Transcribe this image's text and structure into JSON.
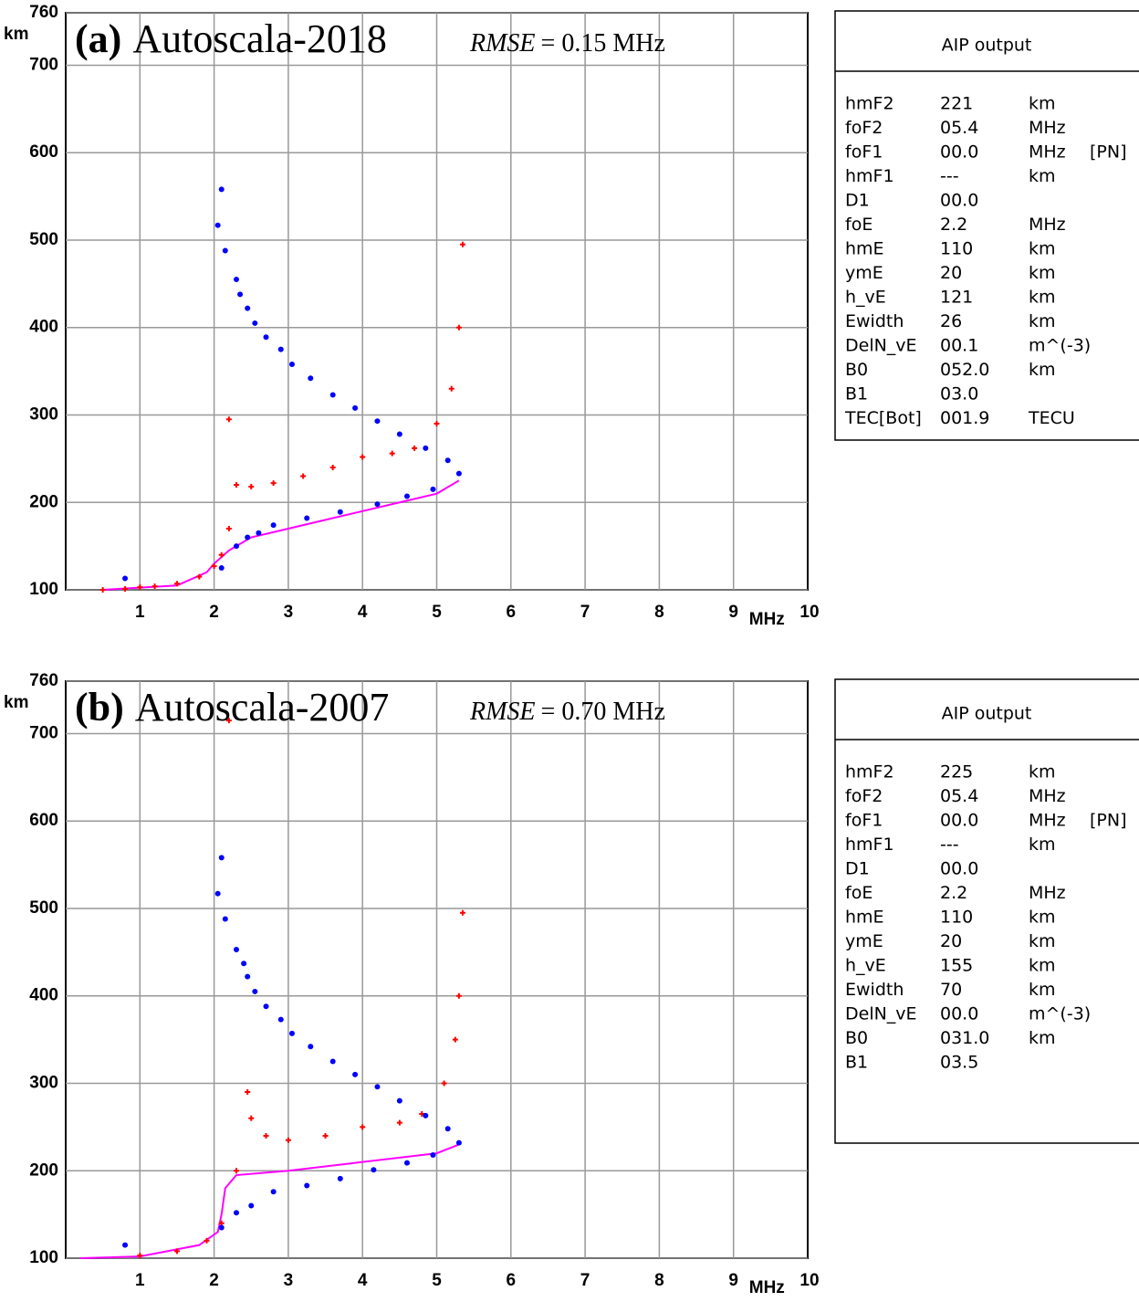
{
  "chart_data": [
    {
      "type": "scatter",
      "label": "(a)",
      "title": "Autoscala-2018",
      "annotation_symbol": "RMSE",
      "annotation_value": "= 0.15 MHz",
      "xlabel": "MHz",
      "ylabel": "km",
      "xlim": [
        0,
        10
      ],
      "ylim": [
        100,
        760
      ],
      "xticks": [
        1,
        2,
        3,
        4,
        5,
        6,
        7,
        8,
        9,
        10
      ],
      "yticks": [
        100,
        200,
        300,
        400,
        500,
        600,
        700,
        760
      ],
      "grid": true,
      "series": [
        {
          "style": "line",
          "color": "#ff00ff",
          "x": [
            0.5,
            1.5,
            1.9,
            2.0,
            2.2,
            2.5,
            3,
            3.5,
            4,
            4.5,
            5,
            5.3
          ],
          "values": [
            100,
            105,
            120,
            130,
            145,
            160,
            170,
            180,
            190,
            200,
            210,
            225
          ]
        },
        {
          "style": "cross",
          "color": "#ff0000",
          "x": [
            0.5,
            0.8,
            1.0,
            1.2,
            1.5,
            1.8,
            2.0,
            2.1,
            2.2,
            2.3,
            2.5,
            2.8,
            3.2,
            3.6,
            4.0,
            4.4,
            4.7,
            5.0,
            5.2,
            5.3,
            5.35,
            2.2
          ],
          "values": [
            100,
            101,
            103,
            104,
            107,
            115,
            127,
            140,
            170,
            220,
            218,
            222,
            230,
            240,
            252,
            256,
            262,
            290,
            330,
            400,
            495,
            295
          ]
        },
        {
          "style": "dot",
          "color": "#0000ff",
          "x": [
            0.8,
            2.05,
            2.1,
            2.15,
            2.3,
            2.35,
            2.45,
            2.55,
            2.7,
            2.9,
            3.05,
            3.3,
            3.6,
            3.9,
            4.2,
            4.5,
            4.85,
            5.15,
            5.3,
            4.95,
            4.6,
            4.2,
            3.7,
            3.25,
            2.8,
            2.6,
            2.45,
            2.3,
            2.1
          ],
          "values": [
            113,
            517,
            558,
            488,
            455,
            438,
            422,
            405,
            389,
            375,
            358,
            342,
            323,
            308,
            293,
            278,
            262,
            248,
            233,
            215,
            207,
            198,
            189,
            182,
            174,
            165,
            160,
            150,
            125
          ]
        }
      ]
    },
    {
      "type": "scatter",
      "label": "(b)",
      "title": "Autoscala-2007",
      "annotation_symbol": "RMSE",
      "annotation_value": "= 0.70 MHz",
      "xlabel": "MHz",
      "ylabel": "km",
      "xlim": [
        0,
        10
      ],
      "ylim": [
        100,
        760
      ],
      "xticks": [
        1,
        2,
        3,
        4,
        5,
        6,
        7,
        8,
        9,
        10
      ],
      "yticks": [
        100,
        200,
        300,
        400,
        500,
        600,
        700,
        760
      ],
      "grid": true,
      "series": [
        {
          "style": "line",
          "color": "#ff00ff",
          "x": [
            0.2,
            1,
            1.8,
            2.05,
            2.1,
            2.15,
            2.3,
            3,
            4,
            5,
            5.3
          ],
          "values": [
            100,
            102,
            115,
            130,
            150,
            180,
            195,
            200,
            210,
            220,
            230
          ]
        },
        {
          "style": "cross",
          "color": "#ff0000",
          "x": [
            1,
            1.5,
            1.9,
            2.1,
            2.3,
            2.5,
            2.7,
            3,
            3.5,
            4,
            4.5,
            4.8,
            5.1,
            5.25,
            5.3,
            5.35,
            2.2,
            2.45
          ],
          "values": [
            103,
            108,
            120,
            140,
            200,
            260,
            240,
            235,
            240,
            250,
            255,
            265,
            300,
            350,
            400,
            495,
            715,
            290
          ]
        },
        {
          "style": "dot",
          "color": "#0000ff",
          "x": [
            0.8,
            2.05,
            2.1,
            2.15,
            2.3,
            2.4,
            2.45,
            2.55,
            2.7,
            2.9,
            3.05,
            3.3,
            3.6,
            3.9,
            4.2,
            4.5,
            4.85,
            5.15,
            5.3,
            4.95,
            4.6,
            4.15,
            3.7,
            3.25,
            2.8,
            2.5,
            2.3,
            2.1
          ],
          "values": [
            115,
            517,
            558,
            488,
            453,
            437,
            422,
            405,
            388,
            373,
            357,
            342,
            325,
            310,
            296,
            280,
            263,
            248,
            232,
            218,
            209,
            201,
            191,
            183,
            176,
            160,
            152,
            135
          ]
        }
      ]
    }
  ],
  "panels": [
    {
      "title": "AIP output",
      "rows": [
        [
          "hmF2",
          "221",
          "km"
        ],
        [
          "foF2",
          "05.4",
          "MHz"
        ],
        [
          "foF1",
          "00.0",
          "MHz",
          "[PN]"
        ],
        [
          "hmF1",
          "---",
          "km"
        ],
        [
          "D1",
          "00.0"
        ],
        [
          "foE",
          "2.2",
          "MHz"
        ],
        [
          "hmE",
          "110",
          "km"
        ],
        [
          "ymE",
          "20",
          "km"
        ],
        [
          "h_vE",
          "121",
          "km"
        ],
        [
          "Ewidth",
          "26",
          "km"
        ],
        [
          "DelN_vE",
          "00.1",
          "m^(-3)"
        ],
        [
          "B0",
          "052.0",
          "km"
        ],
        [
          "B1",
          "03.0"
        ],
        [
          "TEC[Bot]",
          "001.9",
          "TECU"
        ]
      ]
    },
    {
      "title": "AIP output",
      "rows": [
        [
          "hmF2",
          "225",
          "km"
        ],
        [
          "foF2",
          "05.4",
          "MHz"
        ],
        [
          "foF1",
          "00.0",
          "MHz",
          "[PN]"
        ],
        [
          "hmF1",
          "---",
          "km"
        ],
        [
          "D1",
          "00.0"
        ],
        [
          "foE",
          "2.2",
          "MHz"
        ],
        [
          "hmE",
          "110",
          "km"
        ],
        [
          "ymE",
          "20",
          "km"
        ],
        [
          "h_vE",
          "155",
          "km"
        ],
        [
          "Ewidth",
          "70",
          "km"
        ],
        [
          "DelN_vE",
          "00.0",
          "m^(-3)"
        ],
        [
          "B0",
          "031.0",
          "km"
        ],
        [
          "B1",
          "03.5"
        ]
      ]
    }
  ]
}
